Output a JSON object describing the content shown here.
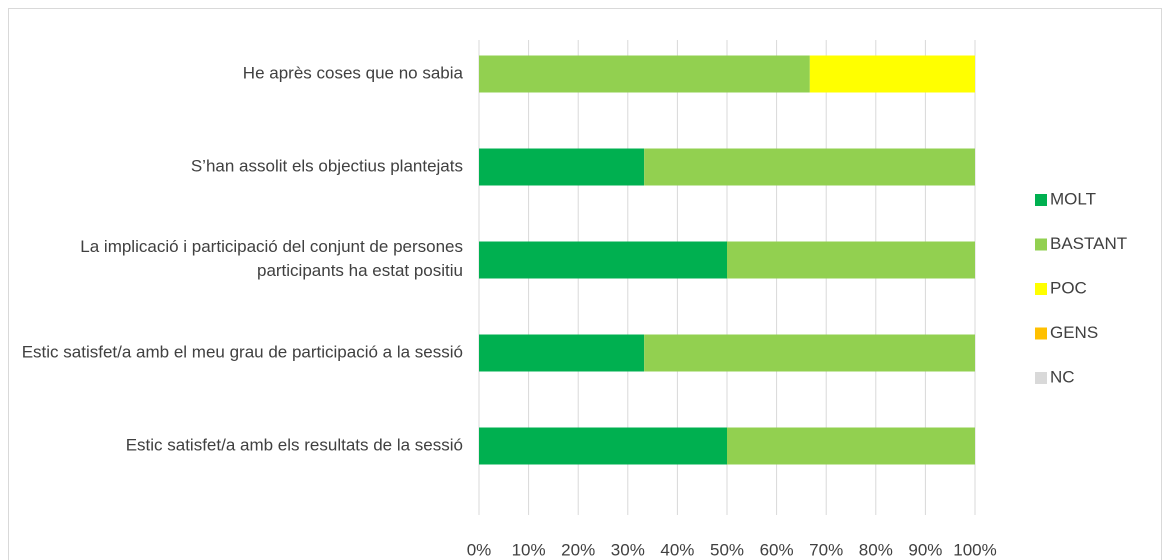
{
  "chart_data": {
    "type": "stacked_bar_horizontal",
    "categories": [
      "He après coses que no sabia",
      "S’han assolit els objectius plantejats",
      "La implicació i participació del conjunt de persones participants ha estat positiu",
      "Estic satisfet/a amb el meu grau de participació a la sessió",
      "Estic satisfet/a amb els resultats de la sessió"
    ],
    "series": [
      {
        "name": "MOLT",
        "color": "#00b050",
        "values": [
          0,
          33.3,
          50,
          33.3,
          50
        ]
      },
      {
        "name": "BASTANT",
        "color": "#92d050",
        "values": [
          66.7,
          66.7,
          50,
          66.7,
          50
        ]
      },
      {
        "name": "POC",
        "color": "#ffff00",
        "values": [
          33.3,
          0,
          0,
          0,
          0
        ]
      },
      {
        "name": "GENS",
        "color": "#ffc000",
        "values": [
          0,
          0,
          0,
          0,
          0
        ]
      },
      {
        "name": "NC",
        "color": "#d9d9d9",
        "values": [
          0,
          0,
          0,
          0,
          0
        ]
      }
    ],
    "xlim": [
      0,
      100
    ],
    "xticks": [
      {
        "value": 0,
        "label": "0%"
      },
      {
        "value": 10,
        "label": "10%"
      },
      {
        "value": 20,
        "label": "20%"
      },
      {
        "value": 30,
        "label": "30%"
      },
      {
        "value": 40,
        "label": "40%"
      },
      {
        "value": 50,
        "label": "50%"
      },
      {
        "value": 60,
        "label": "60%"
      },
      {
        "value": 70,
        "label": "70%"
      },
      {
        "value": 80,
        "label": "80%"
      },
      {
        "value": 90,
        "label": "90%"
      },
      {
        "value": 100,
        "label": "100%"
      }
    ],
    "grid": true,
    "legend": "right"
  }
}
